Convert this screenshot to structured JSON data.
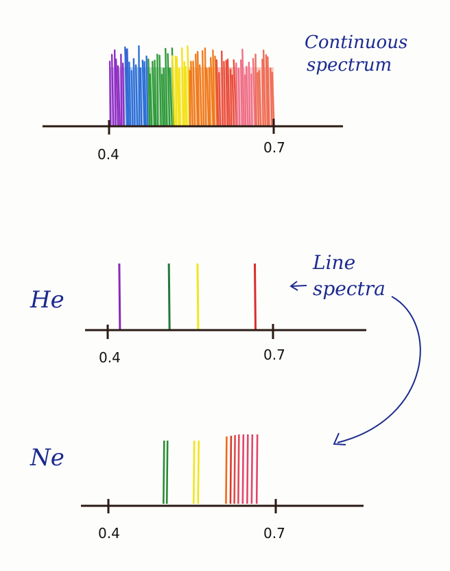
{
  "continuous": {
    "title_line1": "Continuous",
    "title_line2": "spectrum",
    "tick_left": "0.4",
    "tick_right": "0.7",
    "bands": [
      {
        "color": "#8e2fc4",
        "from": 0.4,
        "to": 0.428
      },
      {
        "color": "#2d6fd6",
        "from": 0.428,
        "to": 0.47
      },
      {
        "color": "#2f9a3a",
        "from": 0.47,
        "to": 0.515
      },
      {
        "color": "#f4e21a",
        "from": 0.515,
        "to": 0.545
      },
      {
        "color": "#f07a1c",
        "from": 0.545,
        "to": 0.595
      },
      {
        "color": "#e94d3a",
        "from": 0.595,
        "to": 0.63
      },
      {
        "color": "#ef6f86",
        "from": 0.63,
        "to": 0.665
      },
      {
        "color": "#ef6d56",
        "from": 0.665,
        "to": 0.7
      }
    ]
  },
  "line_spectra_label": [
    "Line",
    "spectra"
  ],
  "helium": {
    "name": "He",
    "tick_left": "0.4",
    "tick_right": "0.7",
    "lines": [
      {
        "color": "#8a2ab8",
        "wavelength": 0.421
      },
      {
        "color": "#1f7a3a",
        "wavelength": 0.511
      },
      {
        "color": "#f2e51a",
        "wavelength": 0.563
      },
      {
        "color": "#d92c2c",
        "wavelength": 0.667
      }
    ]
  },
  "neon": {
    "name": "Ne",
    "tick_left": "0.4",
    "tick_right": "0.7",
    "lines": [
      {
        "color": "#2a8a36",
        "wavelength": 0.5
      },
      {
        "color": "#2a8a36",
        "wavelength": 0.506
      },
      {
        "color": "#f2e51a",
        "wavelength": 0.554
      },
      {
        "color": "#f2e51a",
        "wavelength": 0.562
      },
      {
        "color": "#ee6a17",
        "wavelength": 0.612
      },
      {
        "color": "#d93b2c",
        "wavelength": 0.62
      },
      {
        "color": "#e04a4a",
        "wavelength": 0.627
      },
      {
        "color": "#e04a5c",
        "wavelength": 0.634
      },
      {
        "color": "#e2456a",
        "wavelength": 0.642
      },
      {
        "color": "#e2456a",
        "wavelength": 0.65
      },
      {
        "color": "#e2456a",
        "wavelength": 0.658
      },
      {
        "color": "#e2456a",
        "wavelength": 0.667
      }
    ]
  }
}
